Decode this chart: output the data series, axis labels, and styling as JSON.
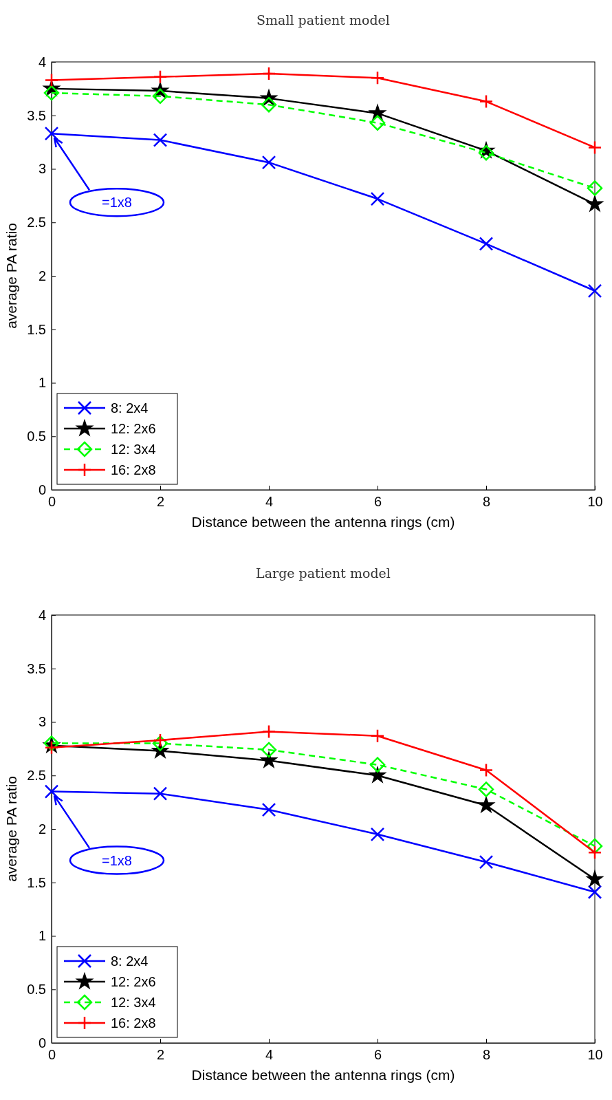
{
  "chart_data": [
    {
      "type": "line",
      "title": "Small patient model",
      "xlabel": "Distance between the antenna rings (cm)",
      "ylabel": "average PA ratio",
      "x": [
        0,
        2,
        4,
        6,
        8,
        10
      ],
      "xlim": [
        0,
        10
      ],
      "xticks": [
        0,
        2,
        4,
        6,
        8,
        10
      ],
      "ylim": [
        0,
        4
      ],
      "yticks": [
        0,
        0.5,
        1,
        1.5,
        2,
        2.5,
        3,
        3.5,
        4
      ],
      "legend": "bottom left",
      "annotations": [
        {
          "text": "=1x8",
          "x": 0,
          "y": 3.33
        }
      ],
      "series": [
        {
          "name": "8: 2x4",
          "color": "#0000ff",
          "marker": "x",
          "line_style": "solid",
          "values": [
            3.33,
            3.27,
            3.06,
            2.72,
            2.3,
            1.86
          ]
        },
        {
          "name": "12: 2x6",
          "color": "#000000",
          "marker": "star",
          "line_style": "solid",
          "values": [
            3.75,
            3.73,
            3.66,
            3.52,
            3.17,
            2.67
          ]
        },
        {
          "name": "12: 3x4",
          "color": "#00ff00",
          "marker": "diamond",
          "line_style": "dashed",
          "values": [
            3.71,
            3.68,
            3.6,
            3.43,
            3.15,
            2.82
          ]
        },
        {
          "name": "16: 2x8",
          "color": "#ff0000",
          "marker": "cross",
          "line_style": "solid",
          "values": [
            3.83,
            3.86,
            3.89,
            3.85,
            3.63,
            3.2
          ]
        }
      ]
    },
    {
      "type": "line",
      "title": "Large patient model",
      "xlabel": "Distance between the antenna rings (cm)",
      "ylabel": "average PA ratio",
      "x": [
        0,
        2,
        4,
        6,
        8,
        10
      ],
      "xlim": [
        0,
        10
      ],
      "xticks": [
        0,
        2,
        4,
        6,
        8,
        10
      ],
      "ylim": [
        0,
        4
      ],
      "yticks": [
        0,
        0.5,
        1,
        1.5,
        2,
        2.5,
        3,
        3.5,
        4
      ],
      "legend": "bottom left",
      "annotations": [
        {
          "text": "=1x8",
          "x": 0,
          "y": 2.35
        }
      ],
      "series": [
        {
          "name": "8: 2x4",
          "color": "#0000ff",
          "marker": "x",
          "line_style": "solid",
          "values": [
            2.35,
            2.33,
            2.18,
            1.95,
            1.69,
            1.41
          ]
        },
        {
          "name": "12: 2x6",
          "color": "#000000",
          "marker": "star",
          "line_style": "solid",
          "values": [
            2.78,
            2.73,
            2.64,
            2.5,
            2.22,
            1.53
          ]
        },
        {
          "name": "12: 3x4",
          "color": "#00ff00",
          "marker": "diamond",
          "line_style": "dashed",
          "values": [
            2.8,
            2.8,
            2.74,
            2.6,
            2.37,
            1.84
          ]
        },
        {
          "name": "16: 2x8",
          "color": "#ff0000",
          "marker": "cross",
          "line_style": "solid",
          "values": [
            2.76,
            2.83,
            2.91,
            2.87,
            2.55,
            1.78
          ]
        }
      ]
    }
  ]
}
